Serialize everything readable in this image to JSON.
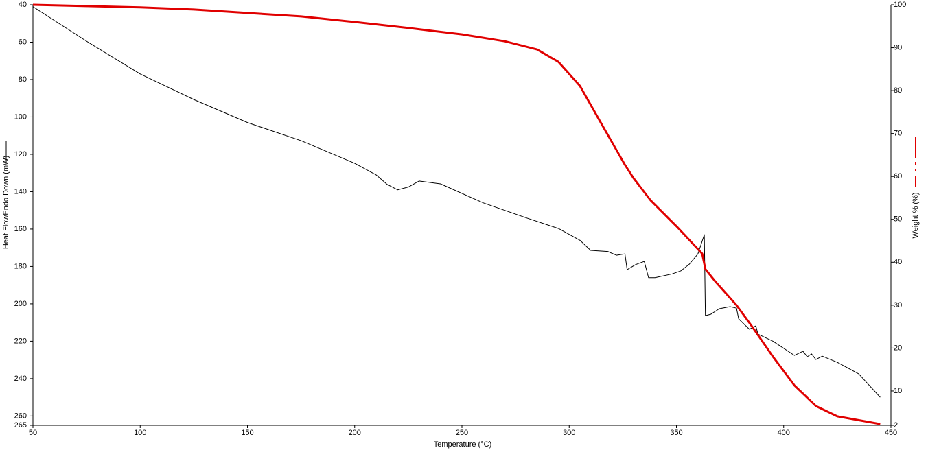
{
  "chart_data": {
    "type": "line",
    "xlabel": "Temperature (°C)",
    "ylabel": "Heat FlowEndo Down (mW)",
    "y2label": "Weight % (%)",
    "xlim": [
      50,
      450
    ],
    "xticks": [
      50,
      100,
      150,
      200,
      250,
      300,
      350,
      400,
      450
    ],
    "ylim": [
      40,
      265
    ],
    "yticks": [
      40,
      60,
      80,
      100,
      120,
      140,
      160,
      180,
      200,
      220,
      240,
      260,
      265
    ],
    "y_inverted": true,
    "y2lim": [
      2,
      100
    ],
    "y2ticks": [
      100,
      90,
      80,
      70,
      60,
      50,
      40,
      30,
      20,
      10,
      2
    ],
    "grid": false,
    "series": [
      {
        "name": "Heat Flow",
        "color": "#000000",
        "axis": "y",
        "width": 1,
        "x": [
          50,
          60,
          75,
          100,
          125,
          150,
          175,
          200,
          210,
          215,
          220,
          225,
          230,
          240,
          260,
          280,
          295,
          305,
          310,
          318,
          322,
          326,
          327,
          331,
          335,
          337,
          340,
          348,
          352,
          356,
          360,
          363,
          363.5,
          366,
          370,
          375,
          378,
          379,
          384,
          387,
          388,
          395,
          405,
          409,
          411,
          413,
          415,
          418,
          425,
          435,
          445
        ],
        "values": [
          41,
          48.4,
          59.5,
          77,
          90.7,
          103,
          112.7,
          124.8,
          131,
          136,
          139,
          137.5,
          134.3,
          135.8,
          146,
          154,
          159.7,
          166,
          171.4,
          172,
          174,
          173.3,
          181.7,
          179,
          177.3,
          186,
          186,
          184,
          182.4,
          178.8,
          173.3,
          163,
          206.3,
          205.6,
          202.6,
          201.5,
          202.3,
          208,
          213.6,
          211.8,
          216.2,
          220,
          227.6,
          225.4,
          228.3,
          226.8,
          229.8,
          228,
          231.3,
          237.5,
          250
        ]
      },
      {
        "name": "Weight %",
        "color": "#e00000",
        "axis": "y2",
        "width": 3,
        "x": [
          50,
          75,
          100,
          125,
          150,
          175,
          200,
          225,
          250,
          270,
          285,
          295,
          305,
          315,
          326,
          330,
          338,
          350,
          362,
          363.5,
          368,
          378,
          385,
          395,
          405,
          415,
          425,
          445
        ],
        "values": [
          100,
          99.7,
          99.4,
          98.9,
          98.1,
          97.3,
          96,
          94.6,
          93.1,
          91.5,
          89.6,
          86.7,
          81.1,
          72.3,
          62.7,
          59.6,
          54.4,
          48.4,
          42,
          38.4,
          35.6,
          30,
          25.2,
          18,
          11.3,
          6.5,
          4.1,
          2.3
        ]
      }
    ]
  }
}
